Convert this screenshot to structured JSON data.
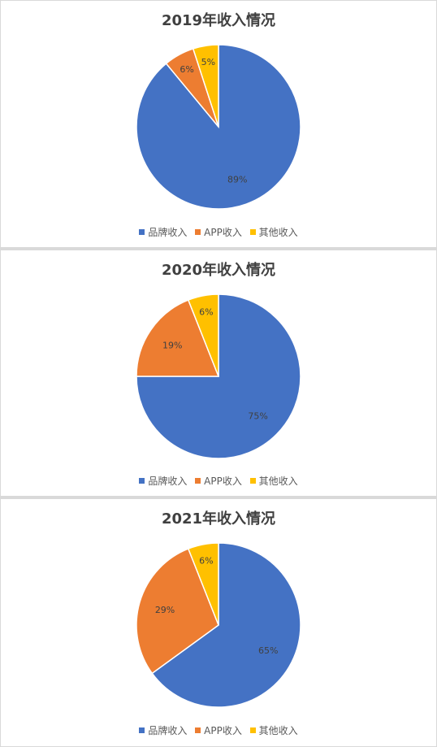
{
  "chart_data": [
    {
      "type": "pie",
      "title": "2019年收入情况",
      "categories": [
        "品牌收入",
        "APP收入",
        "其他收入"
      ],
      "values": [
        89,
        6,
        5
      ],
      "labels": [
        "89%",
        "6%",
        "5%"
      ],
      "colors": [
        "#4472c4",
        "#ed7d31",
        "#ffc000"
      ],
      "legend_position": "bottom"
    },
    {
      "type": "pie",
      "title": "2020年收入情况",
      "categories": [
        "品牌收入",
        "APP收入",
        "其他收入"
      ],
      "values": [
        75,
        19,
        6
      ],
      "labels": [
        "75%",
        "19%",
        "6%"
      ],
      "colors": [
        "#4472c4",
        "#ed7d31",
        "#ffc000"
      ],
      "legend_position": "bottom"
    },
    {
      "type": "pie",
      "title": "2021年收入情况",
      "categories": [
        "品牌收入",
        "APP收入",
        "其他收入"
      ],
      "values": [
        65,
        29,
        6
      ],
      "labels": [
        "65%",
        "29%",
        "6%"
      ],
      "colors": [
        "#4472c4",
        "#ed7d31",
        "#ffc000"
      ],
      "legend_position": "bottom"
    }
  ]
}
